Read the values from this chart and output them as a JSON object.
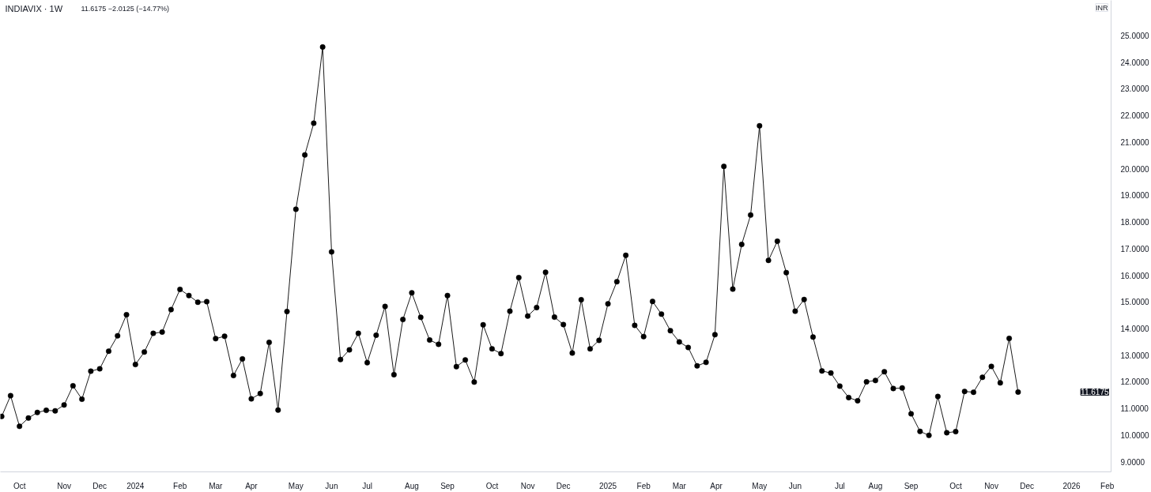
{
  "chart_data": {
    "type": "line",
    "title": "INDIAVIX · 1W",
    "subtitle": "11.6175 −2.0125 (−14.77%)",
    "ylabel": "INR",
    "x": [
      "2023-09-18",
      "2023-09-25",
      "2023-10-02",
      "2023-10-09",
      "2023-10-16",
      "2023-10-23",
      "2023-10-30",
      "2023-11-06",
      "2023-11-13",
      "2023-11-20",
      "2023-11-27",
      "2023-12-04",
      "2023-12-11",
      "2023-12-18",
      "2023-12-25",
      "2024-01-01",
      "2024-01-08",
      "2024-01-15",
      "2024-01-22",
      "2024-01-29",
      "2024-02-05",
      "2024-02-12",
      "2024-02-19",
      "2024-02-26",
      "2024-03-04",
      "2024-03-11",
      "2024-03-18",
      "2024-03-25",
      "2024-04-01",
      "2024-04-08",
      "2024-04-15",
      "2024-04-22",
      "2024-04-29",
      "2024-05-06",
      "2024-05-13",
      "2024-05-20",
      "2024-05-27",
      "2024-06-03",
      "2024-06-10",
      "2024-06-17",
      "2024-06-24",
      "2024-07-01",
      "2024-07-08",
      "2024-07-15",
      "2024-07-22",
      "2024-07-29",
      "2024-08-05",
      "2024-08-12",
      "2024-08-19",
      "2024-08-26",
      "2024-09-02",
      "2024-09-09",
      "2024-09-16",
      "2024-09-23",
      "2024-09-30",
      "2024-10-07",
      "2024-10-14",
      "2024-10-21",
      "2024-10-28",
      "2024-11-04",
      "2024-11-11",
      "2024-11-18",
      "2024-11-25",
      "2024-12-02",
      "2024-12-09",
      "2024-12-16",
      "2024-12-23",
      "2024-12-30",
      "2025-01-06",
      "2025-01-13",
      "2025-01-20",
      "2025-01-27",
      "2025-02-03",
      "2025-02-10",
      "2025-02-17",
      "2025-02-24",
      "2025-03-03",
      "2025-03-10",
      "2025-03-17",
      "2025-03-24",
      "2025-03-31",
      "2025-04-07",
      "2025-04-14",
      "2025-04-21",
      "2025-04-28",
      "2025-05-05",
      "2025-05-12",
      "2025-05-19",
      "2025-05-26",
      "2025-06-02",
      "2025-06-09",
      "2025-06-16",
      "2025-06-23",
      "2025-06-30",
      "2025-07-07",
      "2025-07-14",
      "2025-07-21",
      "2025-07-28",
      "2025-08-04",
      "2025-08-11",
      "2025-08-18",
      "2025-08-25",
      "2025-09-01",
      "2025-09-08",
      "2025-09-15",
      "2025-09-22",
      "2025-09-29",
      "2025-10-06",
      "2025-10-13",
      "2025-10-20",
      "2025-10-27",
      "2025-11-03",
      "2025-11-10",
      "2025-11-17",
      "2025-11-24"
    ],
    "series": [
      {
        "color": "#000000",
        "values": [
          10.7,
          11.48,
          10.33,
          10.64,
          10.85,
          10.93,
          10.91,
          11.13,
          11.85,
          11.35,
          12.4,
          12.49,
          13.15,
          13.73,
          14.52,
          12.65,
          13.12,
          13.82,
          13.87,
          14.71,
          15.47,
          15.24,
          14.99,
          15.01,
          13.62,
          13.71,
          12.24,
          12.86,
          11.36,
          11.56,
          13.48,
          10.94,
          14.64,
          18.48,
          20.52,
          21.71,
          24.57,
          16.88,
          12.84,
          13.2,
          13.82,
          12.72,
          13.75,
          14.83,
          12.27,
          14.34,
          15.34,
          14.42,
          13.57,
          13.41,
          15.24,
          12.57,
          12.82,
          11.99,
          14.14,
          13.24,
          13.06,
          14.65,
          15.91,
          14.47,
          14.79,
          16.11,
          14.43,
          14.15,
          13.08,
          15.08,
          13.24,
          13.56,
          14.93,
          15.76,
          16.75,
          14.12,
          13.7,
          15.02,
          14.54,
          13.92,
          13.5,
          13.29,
          12.6,
          12.73,
          13.77,
          20.09,
          15.48,
          17.16,
          18.26,
          21.61,
          16.56,
          17.28,
          16.1,
          14.65,
          15.09,
          13.68,
          12.41,
          12.33,
          11.84,
          11.41,
          11.29,
          12.0,
          12.05,
          12.38,
          11.75,
          11.77,
          10.8,
          10.14,
          9.99,
          11.45,
          10.09,
          10.13,
          11.64,
          11.61,
          12.17,
          12.58,
          11.96,
          13.63,
          11.6175
        ]
      }
    ],
    "annotations": [
      "11.6175"
    ],
    "xlim": [
      "2023-09-17",
      "2026-02-05"
    ],
    "ylim": [
      8.62,
      26.32
    ],
    "xticks": [
      {
        "value": "2023-10-02",
        "label": "Oct"
      },
      {
        "value": "2023-11-06",
        "label": "Nov"
      },
      {
        "value": "2023-12-04",
        "label": "Dec"
      },
      {
        "value": "2024-01-01",
        "label": "2024"
      },
      {
        "value": "2024-02-05",
        "label": "Feb"
      },
      {
        "value": "2024-03-04",
        "label": "Mar"
      },
      {
        "value": "2024-04-01",
        "label": "Apr"
      },
      {
        "value": "2024-05-06",
        "label": "May"
      },
      {
        "value": "2024-06-03",
        "label": "Jun"
      },
      {
        "value": "2024-07-01",
        "label": "Jul"
      },
      {
        "value": "2024-08-05",
        "label": "Aug"
      },
      {
        "value": "2024-09-02",
        "label": "Sep"
      },
      {
        "value": "2024-10-07",
        "label": "Oct"
      },
      {
        "value": "2024-11-04",
        "label": "Nov"
      },
      {
        "value": "2024-12-02",
        "label": "Dec"
      },
      {
        "value": "2025-01-06",
        "label": "2025"
      },
      {
        "value": "2025-02-03",
        "label": "Feb"
      },
      {
        "value": "2025-03-03",
        "label": "Mar"
      },
      {
        "value": "2025-04-01",
        "label": "Apr"
      },
      {
        "value": "2025-05-05",
        "label": "May"
      },
      {
        "value": "2025-06-02",
        "label": "Jun"
      },
      {
        "value": "2025-07-07",
        "label": "Jul"
      },
      {
        "value": "2025-08-04",
        "label": "Aug"
      },
      {
        "value": "2025-09-01",
        "label": "Sep"
      },
      {
        "value": "2025-10-06",
        "label": "Oct"
      },
      {
        "value": "2025-11-03",
        "label": "Nov"
      },
      {
        "value": "2025-12-01",
        "label": "Dec"
      },
      {
        "value": "2026-01-05",
        "label": "2026"
      },
      {
        "value": "2026-02-02",
        "label": "Feb"
      }
    ],
    "yticks": [
      {
        "value": 9,
        "label": "9.0000"
      },
      {
        "value": 10,
        "label": "10.0000"
      },
      {
        "value": 11,
        "label": "11.0000"
      },
      {
        "value": 12,
        "label": "12.0000"
      },
      {
        "value": 13,
        "label": "13.0000"
      },
      {
        "value": 14,
        "label": "14.0000"
      },
      {
        "value": 15,
        "label": "15.0000"
      },
      {
        "value": 16,
        "label": "16.0000"
      },
      {
        "value": 17,
        "label": "17.0000"
      },
      {
        "value": 18,
        "label": "18.0000"
      },
      {
        "value": 19,
        "label": "19.0000"
      },
      {
        "value": 20,
        "label": "20.0000"
      },
      {
        "value": 21,
        "label": "21.0000"
      },
      {
        "value": 22,
        "label": "22.0000"
      },
      {
        "value": 23,
        "label": "23.0000"
      },
      {
        "value": 24,
        "label": "24.0000"
      },
      {
        "value": 25,
        "label": "25.0000"
      }
    ],
    "marker": "circle",
    "line_style": "solid"
  }
}
